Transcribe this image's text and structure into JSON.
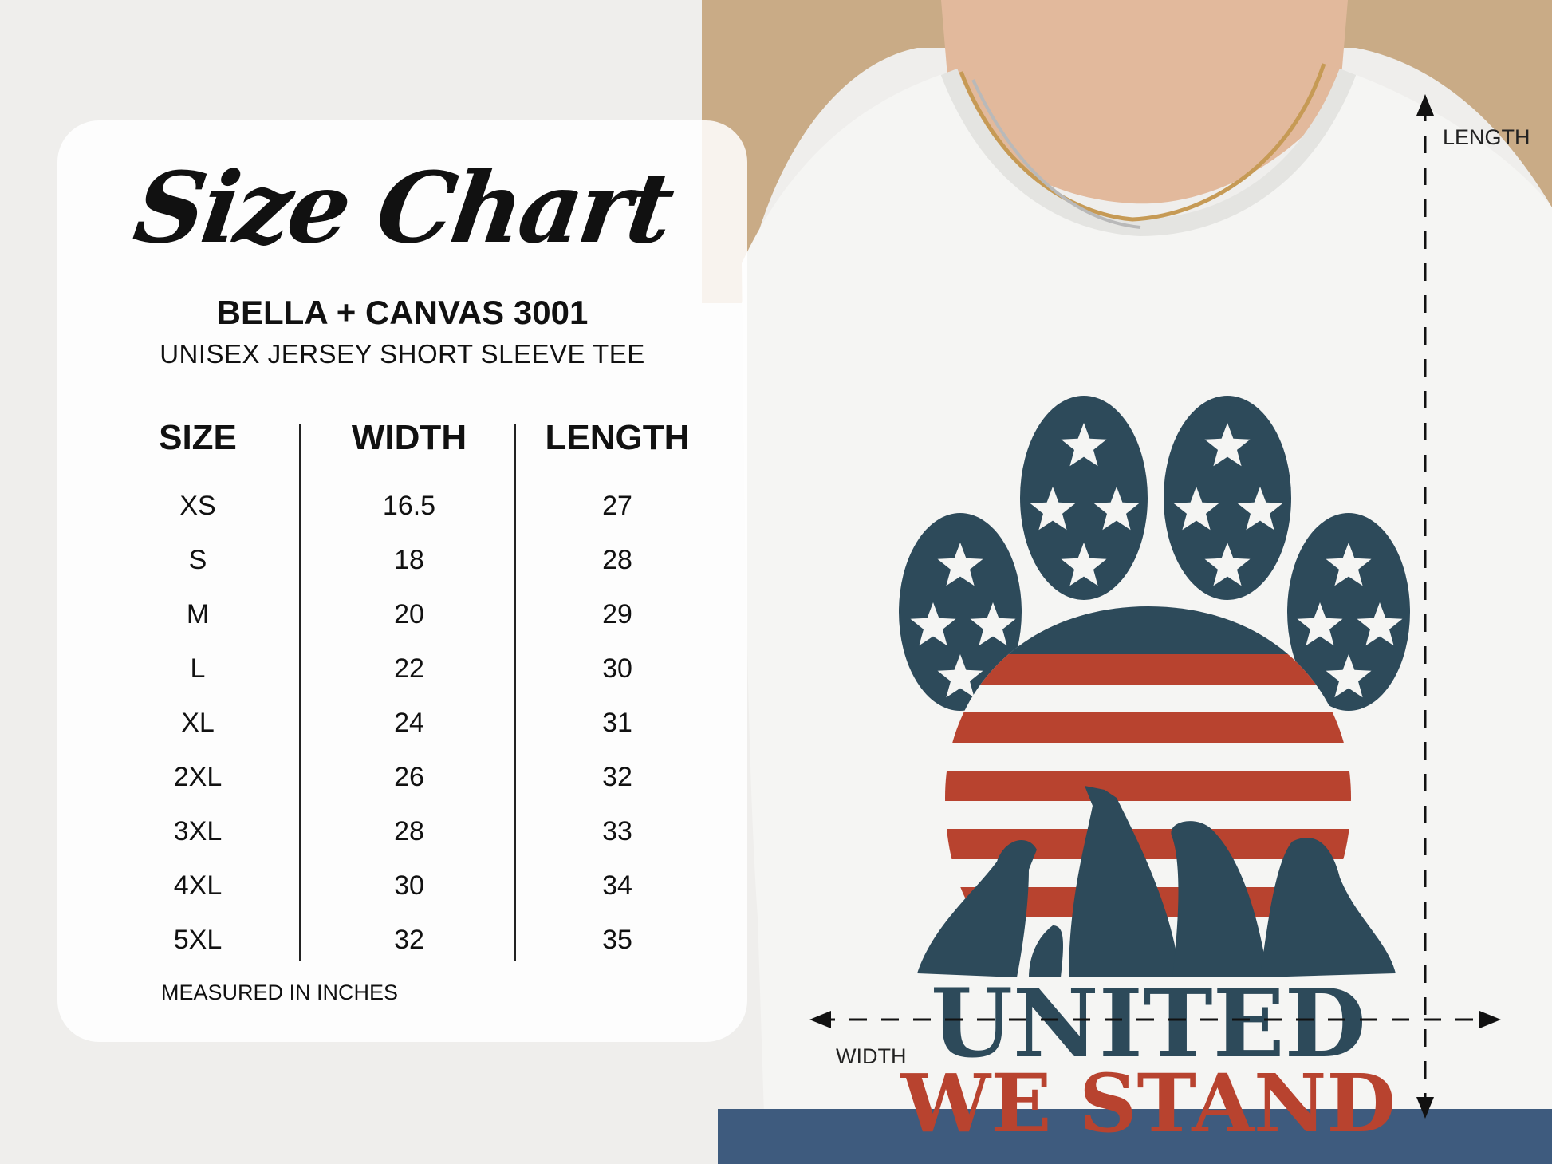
{
  "chart_title": "Size Chart",
  "brand": "BELLA + CANVAS 3001",
  "product": "UNISEX JERSEY SHORT SLEEVE TEE",
  "table": {
    "headers": [
      "SIZE",
      "WIDTH",
      "LENGTH"
    ],
    "rows": [
      [
        "XS",
        "16.5",
        "27"
      ],
      [
        "S",
        "18",
        "28"
      ],
      [
        "M",
        "20",
        "29"
      ],
      [
        "L",
        "22",
        "30"
      ],
      [
        "XL",
        "24",
        "31"
      ],
      [
        "2XL",
        "26",
        "32"
      ],
      [
        "3XL",
        "28",
        "33"
      ],
      [
        "4XL",
        "30",
        "34"
      ],
      [
        "5XL",
        "32",
        "35"
      ]
    ]
  },
  "footnote": "MEASURED IN INCHES",
  "dimensions": {
    "length_label": "LENGTH",
    "width_label": "WIDTH"
  },
  "shirt_print": {
    "line1": "UNITED",
    "line2": "WE STAND"
  },
  "colors": {
    "navy": "#2d4a5a",
    "red": "#b8432f",
    "shirt": "#f4f4f2"
  }
}
